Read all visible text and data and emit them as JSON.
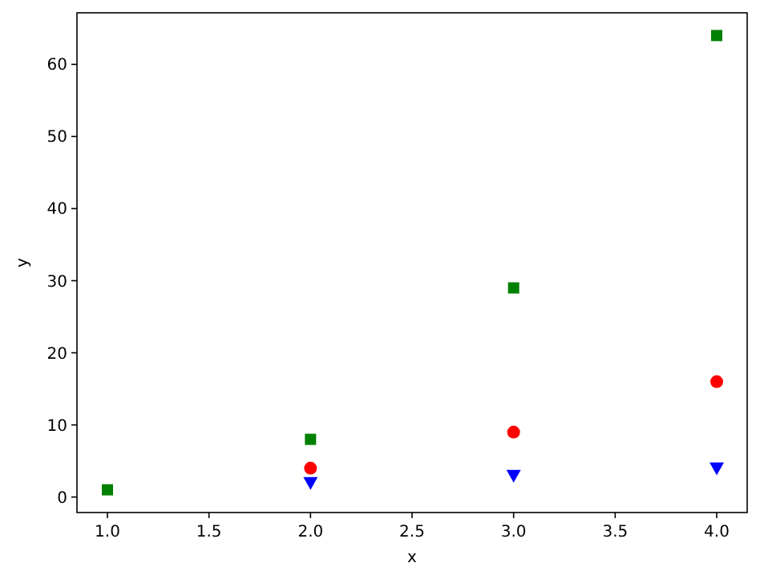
{
  "chart_data": {
    "type": "scatter",
    "xlabel": "x",
    "ylabel": "y",
    "x": [
      1,
      2,
      3,
      4
    ],
    "series": [
      {
        "color": "#ff0000",
        "marker": "circle",
        "values": [
          null,
          4,
          9,
          16
        ]
      },
      {
        "color": "#0000ff",
        "marker": "triangle",
        "values": [
          null,
          2,
          3,
          4
        ]
      },
      {
        "color": "#008000",
        "marker": "square",
        "values": [
          1,
          8,
          29,
          64
        ]
      }
    ],
    "xlim": [
      0.85,
      4.15
    ],
    "ylim": [
      -2.15,
      67.15
    ],
    "xticks": [
      {
        "value": 1,
        "label": "1.0"
      },
      {
        "value": 1.5,
        "label": "1.5"
      },
      {
        "value": 2,
        "label": "2.0"
      },
      {
        "value": 2.5,
        "label": "2.5"
      },
      {
        "value": 3,
        "label": "3.0"
      },
      {
        "value": 3.5,
        "label": "3.5"
      },
      {
        "value": 4,
        "label": "4.0"
      }
    ],
    "yticks": [
      0,
      10,
      20,
      30,
      40,
      50,
      60
    ]
  }
}
